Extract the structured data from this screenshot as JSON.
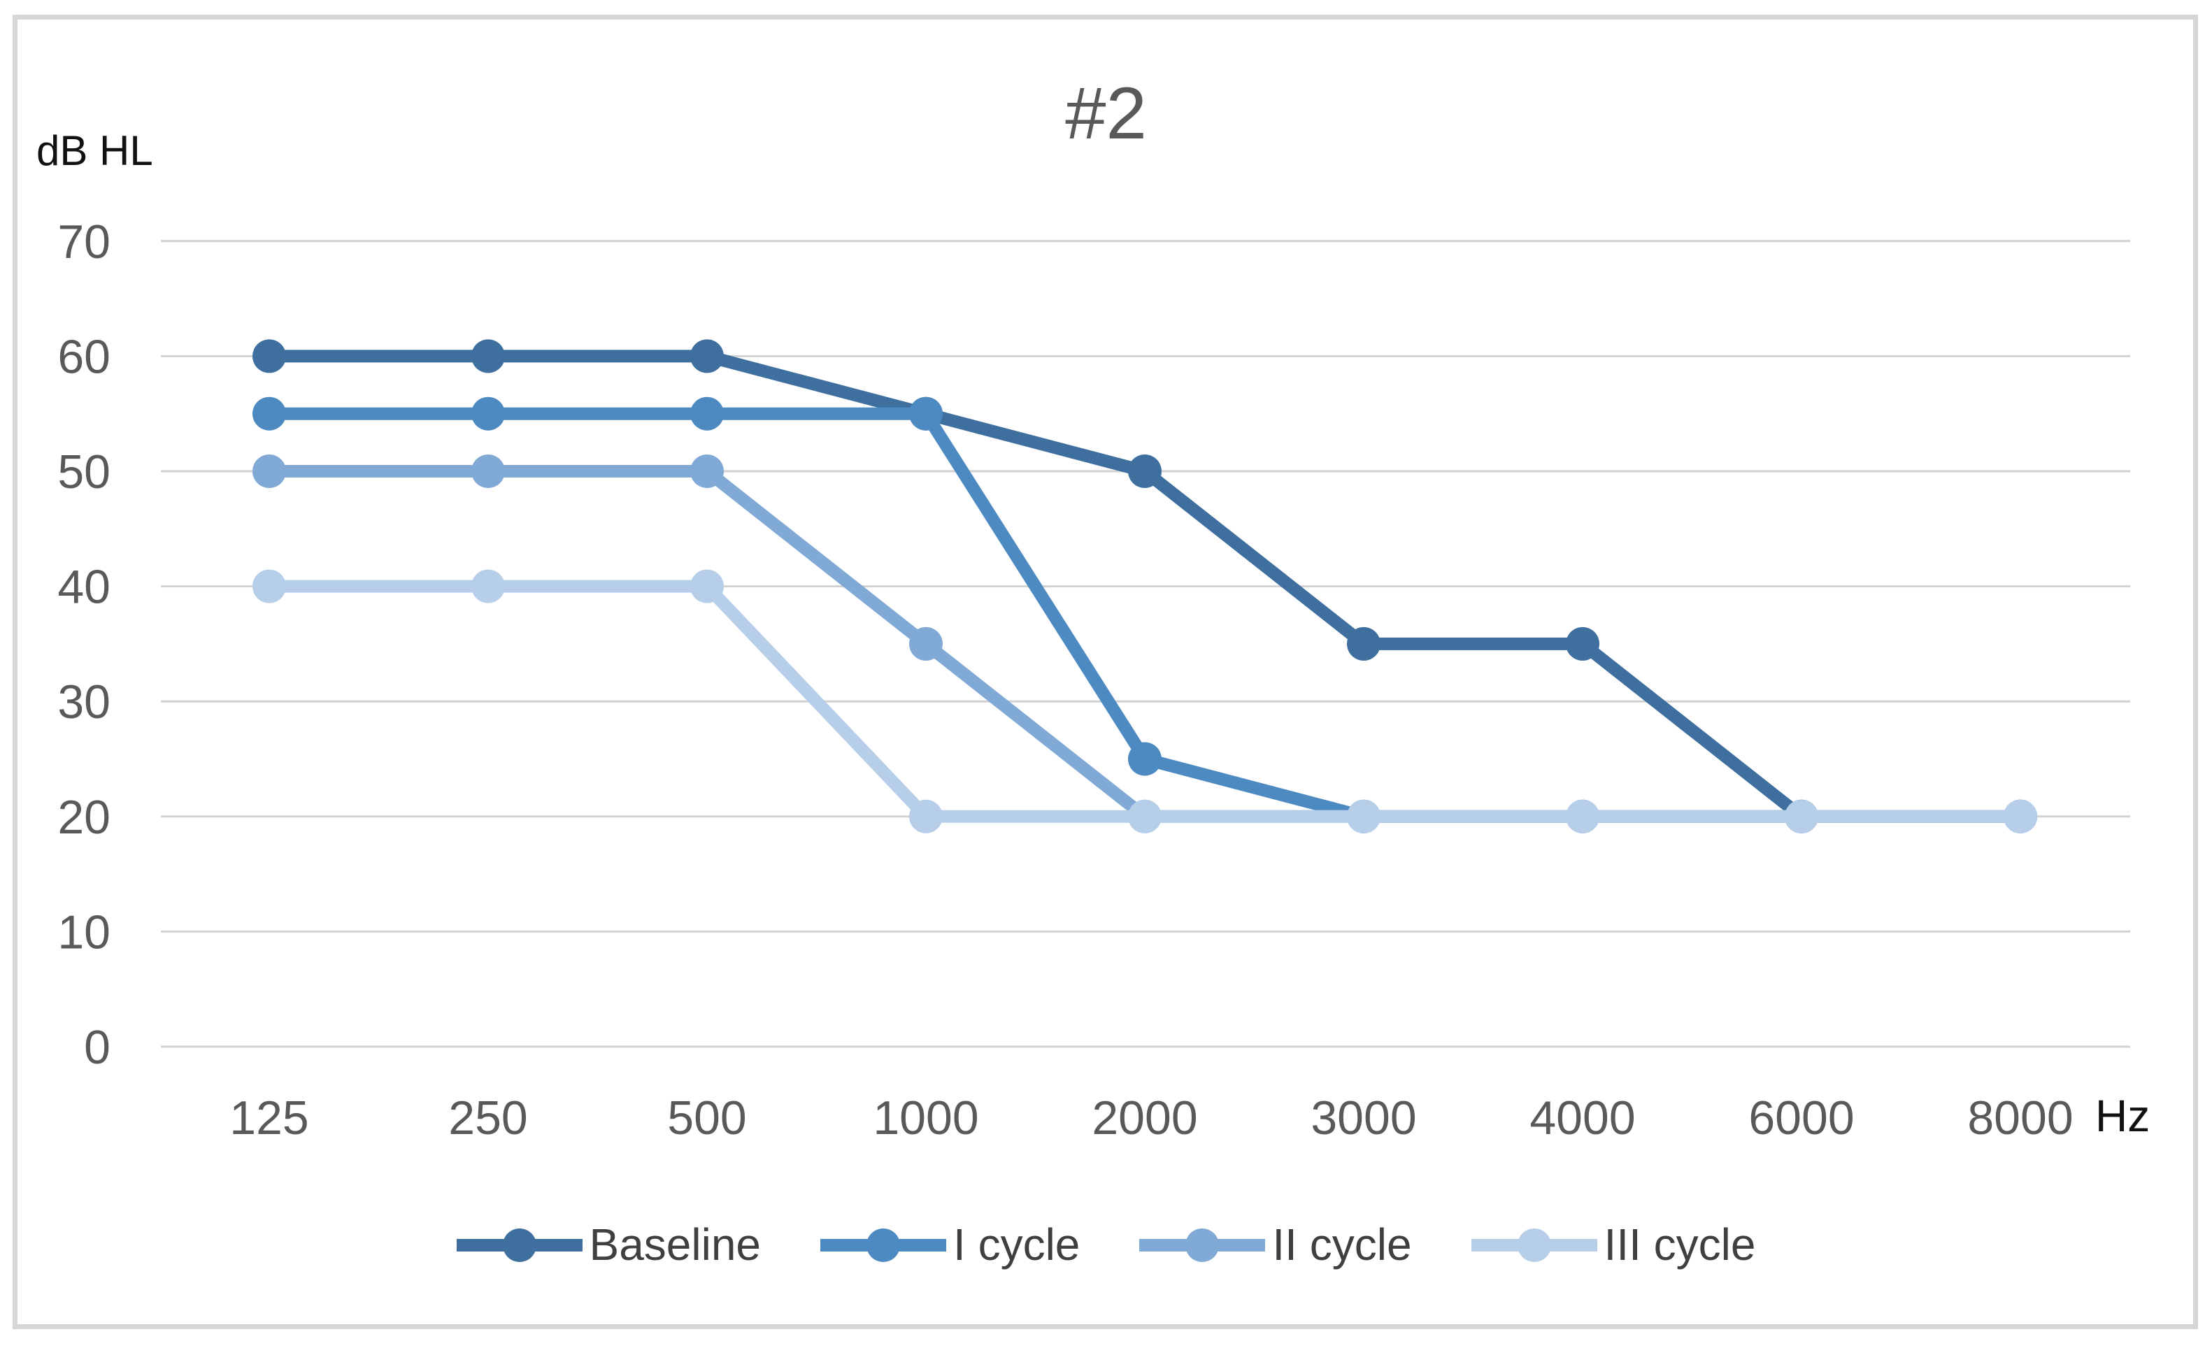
{
  "chart_data": {
    "type": "line",
    "title": "#2",
    "y_axis_label": "dB HL",
    "x_axis_unit": "Hz",
    "x_categories": [
      "125",
      "250",
      "500",
      "1000",
      "2000",
      "3000",
      "4000",
      "6000",
      "8000"
    ],
    "y_ticks": [
      70,
      60,
      50,
      40,
      30,
      20,
      10,
      0
    ],
    "ylim": [
      0,
      70
    ],
    "grid": "horizontal-only",
    "legend_position": "bottom",
    "series": [
      {
        "name": "Baseline",
        "color": "#3e6f9f",
        "values": [
          60,
          60,
          60,
          55,
          50,
          35,
          35,
          20,
          20
        ]
      },
      {
        "name": "I cycle",
        "color": "#4e8ac2",
        "values": [
          55,
          55,
          55,
          55,
          25,
          20,
          20,
          20,
          20
        ]
      },
      {
        "name": "II cycle",
        "color": "#80a9d6",
        "values": [
          50,
          50,
          50,
          35,
          20,
          20,
          20,
          20,
          20
        ]
      },
      {
        "name": "III cycle",
        "color": "#b7cee9",
        "values": [
          40,
          40,
          40,
          20,
          20,
          20,
          20,
          20,
          20
        ]
      }
    ],
    "colors": {
      "gridline": "#d2d2d2",
      "tick_label": "#595959",
      "title": "#595959",
      "axis_unit_label": "#111111",
      "legend_text": "#3f3f3f",
      "frame_border": "#d6d6d6",
      "background": "#ffffff"
    }
  }
}
